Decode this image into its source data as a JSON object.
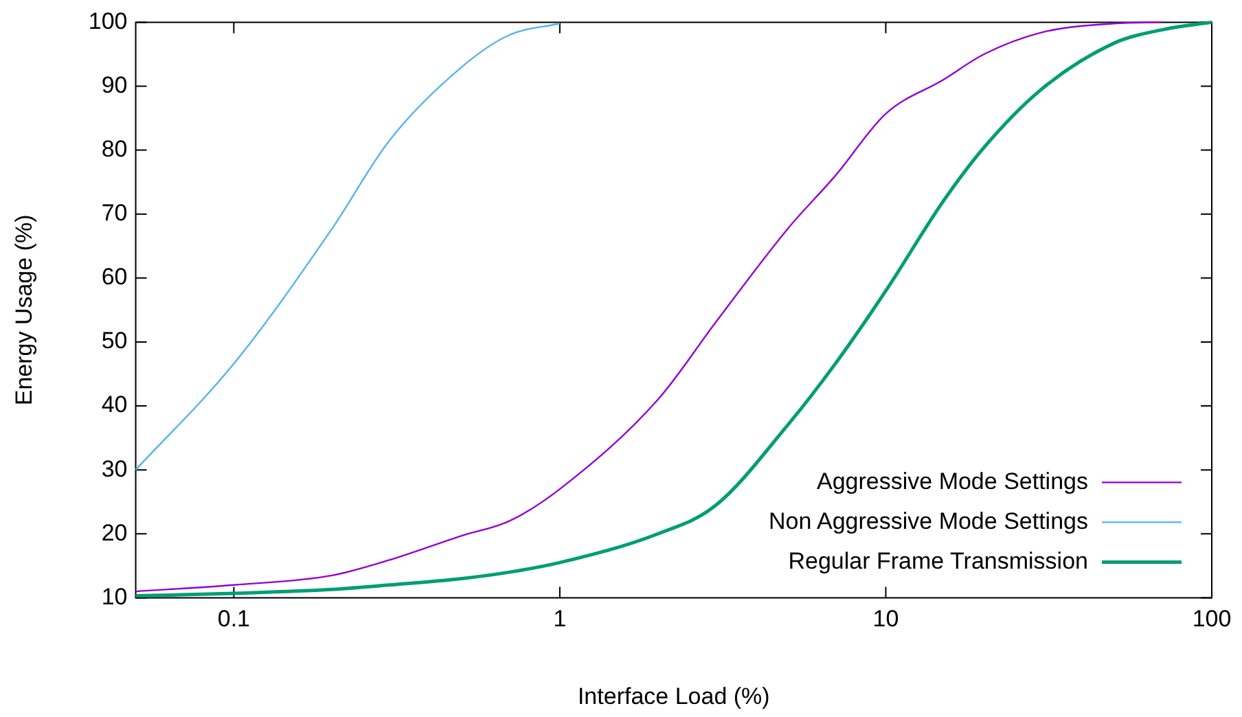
{
  "chart_data": {
    "type": "line",
    "xlabel": "Interface Load (%)",
    "ylabel": "Energy Usage (%)",
    "log": "x",
    "xlim": [
      0.05,
      100
    ],
    "xticks": [
      0.1,
      1,
      10,
      100
    ],
    "ylim": [
      10,
      100
    ],
    "yticks": [
      10,
      20,
      30,
      40,
      50,
      60,
      70,
      80,
      90,
      100
    ],
    "grid": false,
    "legend": "bottom right",
    "marker": "none",
    "line_style": "solid",
    "x": [
      0.05,
      0.1,
      0.2,
      0.3,
      0.5,
      0.7,
      1,
      2,
      3,
      5,
      7,
      10,
      15,
      20,
      30,
      50,
      70,
      100
    ],
    "series": [
      {
        "name": "Aggressive Mode Settings",
        "color": "#9400d3",
        "values": [
          11,
          12,
          13.5,
          15.9,
          19.7,
          22,
          27,
          41,
          53,
          67.7,
          76,
          85.7,
          91,
          95,
          98.4,
          99.8,
          100,
          null
        ]
      },
      {
        "name": "Non Aggressive Mode Settings",
        "color": "#56b4e9",
        "values": [
          30,
          46.6,
          67.7,
          81.5,
          93,
          98,
          99.8,
          null,
          null,
          null,
          null,
          null,
          null,
          null,
          null,
          null,
          null,
          null
        ]
      },
      {
        "name": "Regular Frame Transmission",
        "color": "#009e73",
        "values": [
          10.3,
          10.7,
          11.3,
          12,
          13,
          14,
          15.5,
          20,
          24.4,
          37,
          46.6,
          58,
          72,
          80.4,
          89.5,
          96.7,
          98.8,
          100
        ]
      }
    ]
  }
}
